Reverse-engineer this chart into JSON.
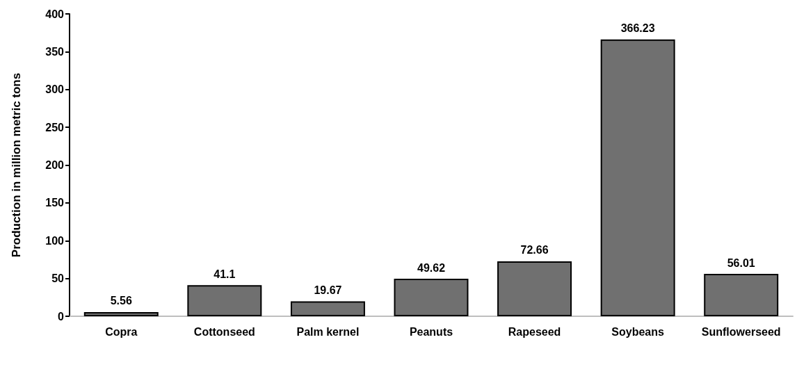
{
  "chart_data": {
    "type": "bar",
    "ylabel": "Production in million metric tons",
    "categories": [
      "Copra",
      "Cottonseed",
      "Palm kernel",
      "Peanuts",
      "Rapeseed",
      "Soybeans",
      "Sunflowerseed"
    ],
    "values": [
      5.56,
      41.1,
      19.67,
      49.62,
      72.66,
      366.23,
      56.01
    ],
    "color": "#707070",
    "ylim": [
      0,
      400
    ],
    "yticks": [
      0,
      50,
      100,
      150,
      200,
      250,
      300,
      350,
      400
    ],
    "grid": false,
    "data_labels": true
  }
}
